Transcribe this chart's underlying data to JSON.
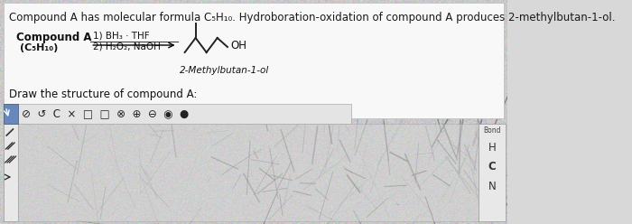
{
  "bg_color": "#d8d8d8",
  "white_top_color": "#f7f7f7",
  "title_text": "Compound A has molecular formula C₅H₁₀. Hydroboration-oxidation of compound A produces 2-methylbutan-1-ol.",
  "compound_label": "Compound A",
  "compound_formula": "(C₅H₁₀)",
  "reagent1": "1) BH₃ · THF",
  "reagent2": "2) H₂O₂, NaOH",
  "product_label": "2-Methylbutan-1-ol",
  "draw_prompt": "Draw the structure of compound A:",
  "title_fontsize": 8.5,
  "label_fontsize": 8.5,
  "small_fontsize": 7.5,
  "toolbar_bg": "#e0e0e0",
  "canvas_bg": "#d8d8d8",
  "white_panel_color": "#f0f0f0"
}
